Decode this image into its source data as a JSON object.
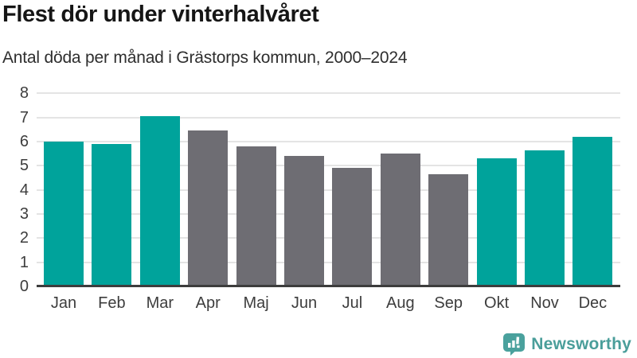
{
  "header": {
    "title": "Flest dör under vinterhalvåret",
    "subtitle": "Antal döda per månad i Grästorps kommun, 2000–2024"
  },
  "chart_data": {
    "type": "bar",
    "title": "Flest dör under vinterhalvåret",
    "subtitle": "Antal döda per månad i Grästorps kommun, 2000–2024",
    "categories": [
      "Jan",
      "Feb",
      "Mar",
      "Apr",
      "Maj",
      "Jun",
      "Jul",
      "Aug",
      "Sep",
      "Okt",
      "Nov",
      "Dec"
    ],
    "values": [
      6.0,
      5.9,
      7.05,
      6.45,
      5.8,
      5.4,
      4.9,
      5.5,
      4.65,
      5.3,
      5.65,
      6.2
    ],
    "bar_colors": [
      "#00a39b",
      "#00a39b",
      "#00a39b",
      "#6e6d73",
      "#6e6d73",
      "#6e6d73",
      "#6e6d73",
      "#6e6d73",
      "#6e6d73",
      "#00a39b",
      "#00a39b",
      "#00a39b"
    ],
    "xlabel": "",
    "ylabel": "",
    "ylim": [
      0,
      8
    ],
    "yticks": [
      0,
      1,
      2,
      3,
      4,
      5,
      6,
      7,
      8
    ],
    "grid": "horizontal",
    "legend": "none",
    "colors": {
      "highlight_teal": "#00a39b",
      "neutral_gray": "#6e6d73",
      "gridline": "#e4e4e4",
      "axis_line": "#3d3d3d",
      "tick_label": "#3d3d3d"
    }
  },
  "branding": {
    "logo_text": "Newsworthy",
    "logo_icon": "bar-chart-speech-bubble-icon",
    "logo_color": "#4a9e9a"
  }
}
